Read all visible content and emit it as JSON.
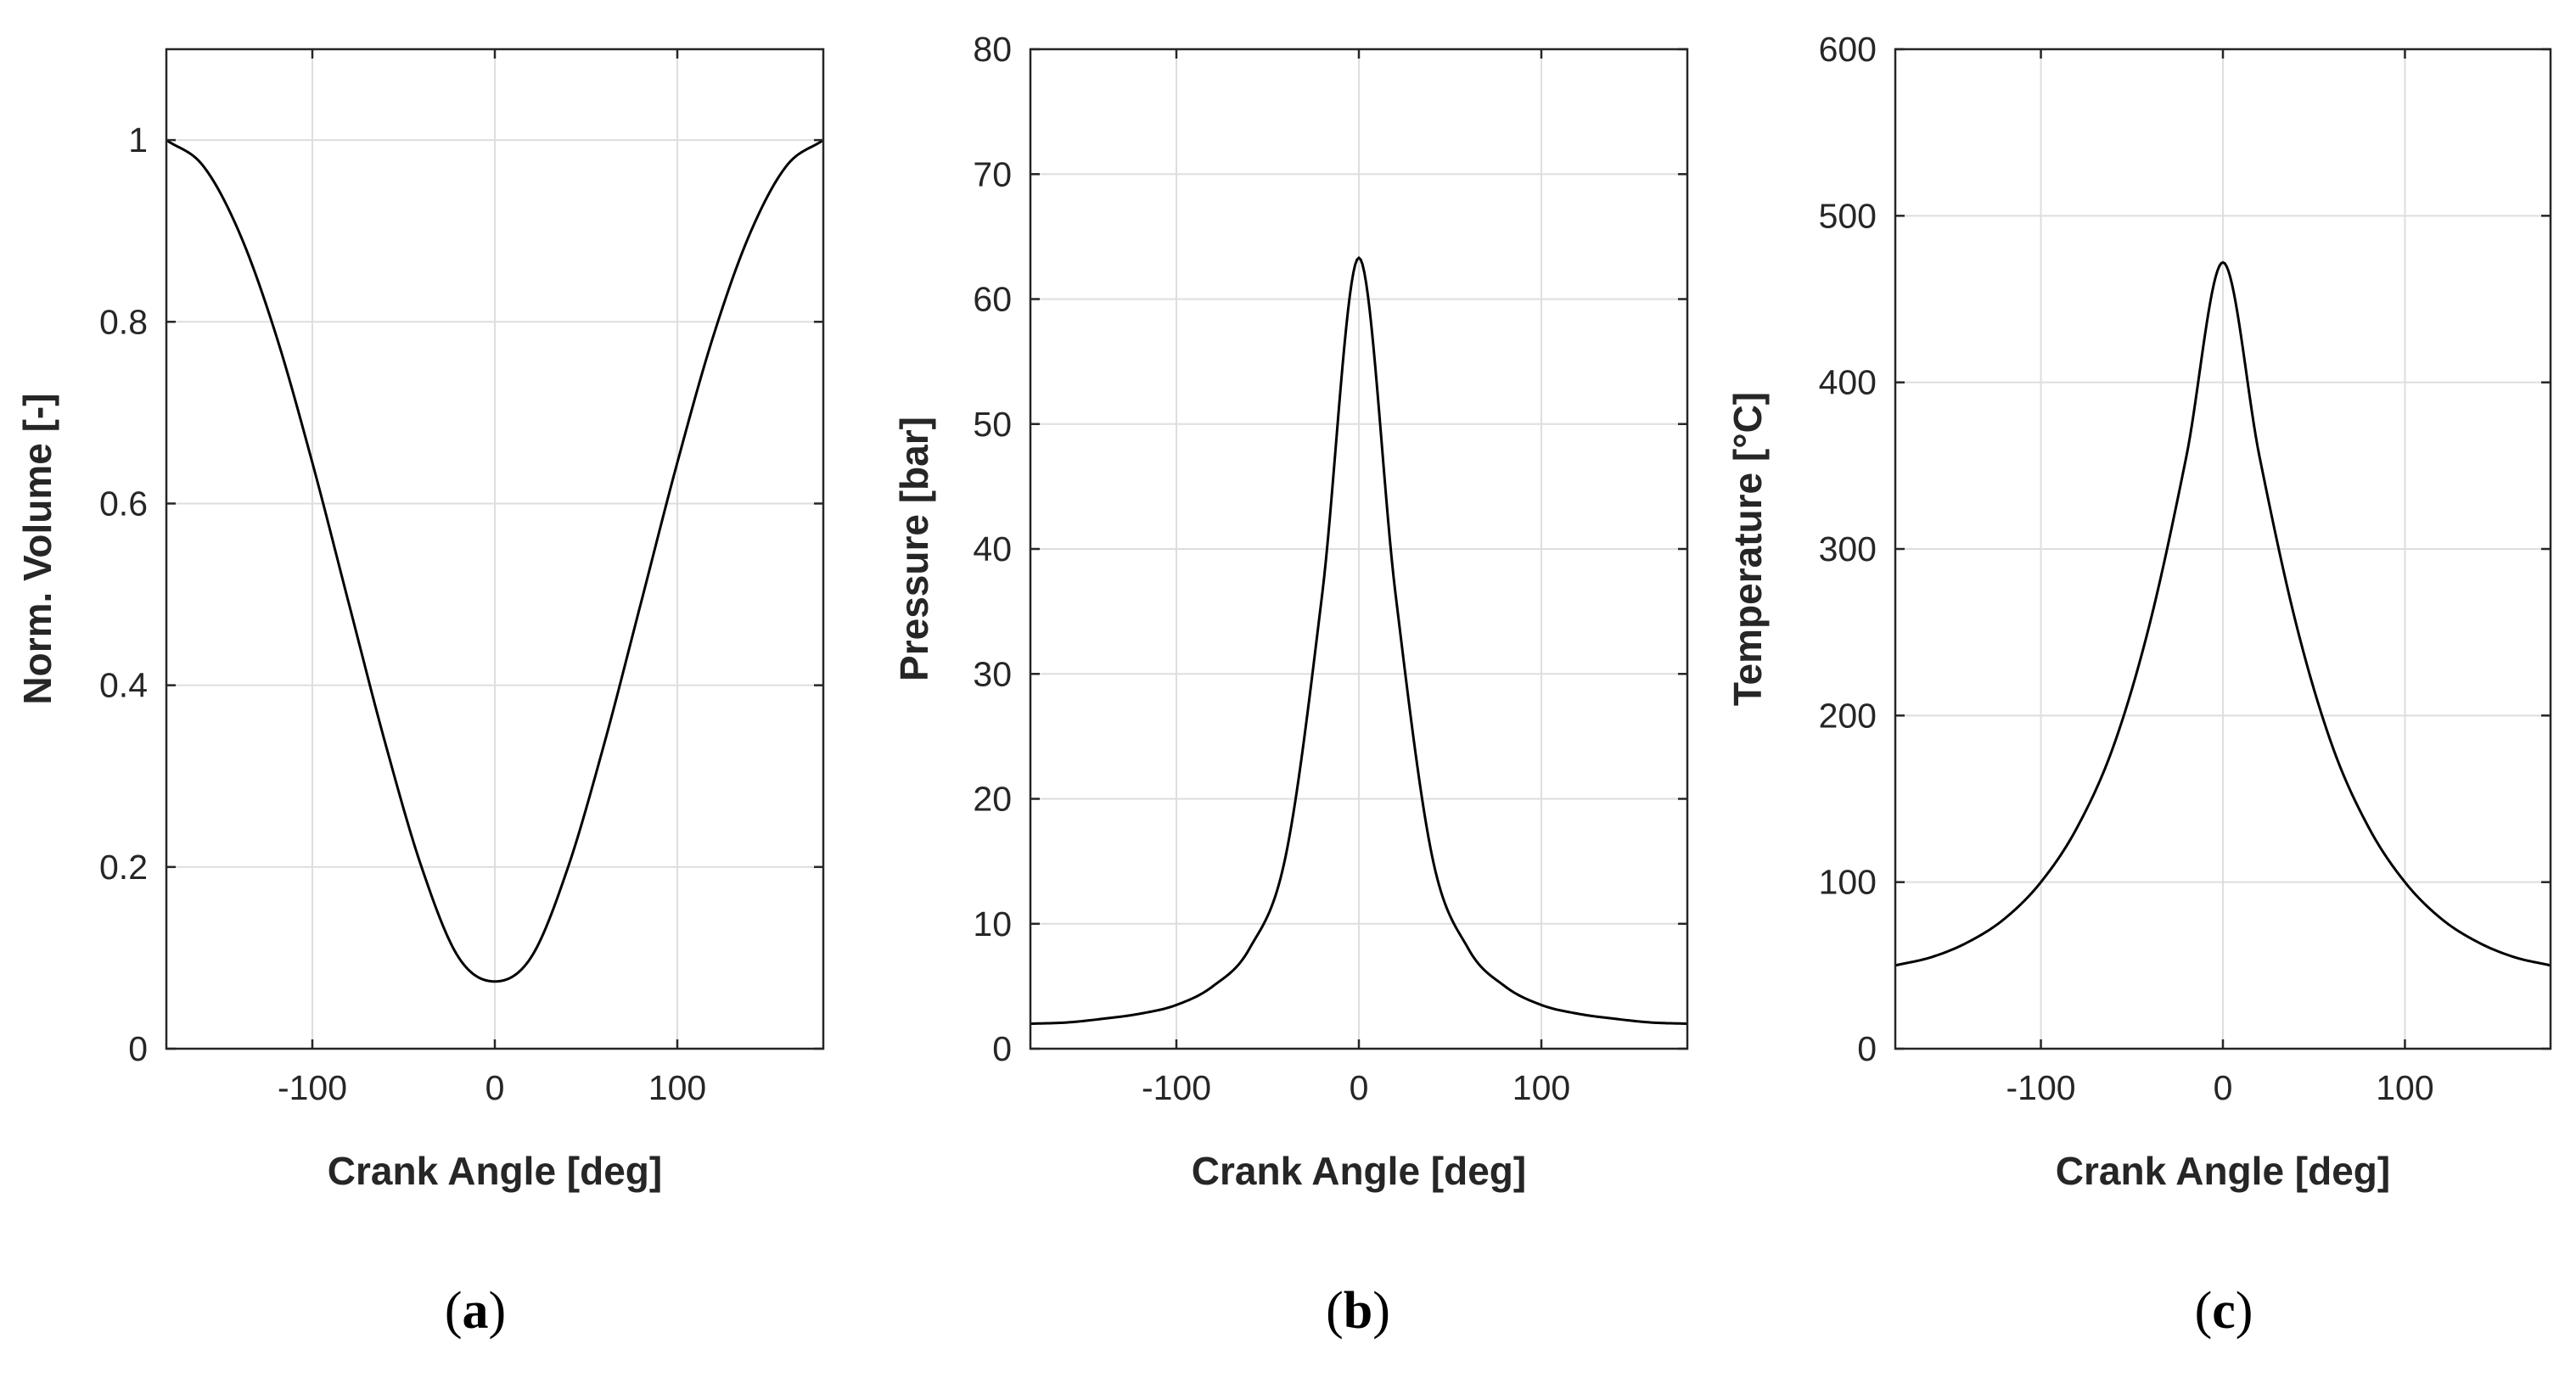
{
  "chart_data": [
    {
      "type": "line",
      "panel_label": "a",
      "xlabel": "Crank Angle [deg]",
      "ylabel": "Norm. Volume [-]",
      "xlim": [
        -180,
        180
      ],
      "ylim": [
        0,
        1.1
      ],
      "xticks": [
        -100,
        0,
        100
      ],
      "yticks": [
        0,
        0.2,
        0.4,
        0.6,
        0.8,
        1
      ],
      "ytick_labels": [
        "0",
        "0.2",
        "0.4",
        "0.6",
        "0.8",
        "1"
      ],
      "grid": true,
      "line_color": "#000000",
      "series": [
        {
          "x": [
            -180,
            -160,
            -140,
            -120,
            -100,
            -80,
            -60,
            -40,
            -20,
            0,
            20,
            40,
            60,
            80,
            100,
            120,
            140,
            160,
            180
          ],
          "values": [
            1.0,
            0.972,
            0.898,
            0.786,
            0.645,
            0.49,
            0.336,
            0.199,
            0.101,
            0.074,
            0.101,
            0.199,
            0.336,
            0.49,
            0.645,
            0.786,
            0.898,
            0.972,
            1.0
          ]
        }
      ]
    },
    {
      "type": "line",
      "panel_label": "b",
      "xlabel": "Crank Angle [deg]",
      "ylabel": "Pressure [bar]",
      "xlim": [
        -180,
        180
      ],
      "ylim": [
        0,
        80
      ],
      "xticks": [
        -100,
        0,
        100
      ],
      "yticks": [
        0,
        10,
        20,
        30,
        40,
        50,
        60,
        70,
        80
      ],
      "ytick_labels": [
        "0",
        "10",
        "20",
        "30",
        "40",
        "50",
        "60",
        "70",
        "80"
      ],
      "grid": true,
      "line_color": "#000000",
      "series": [
        {
          "x": [
            -180,
            -160,
            -140,
            -120,
            -100,
            -80,
            -60,
            -40,
            -20,
            0,
            20,
            40,
            60,
            80,
            100,
            120,
            140,
            160,
            180
          ],
          "values": [
            2.0,
            2.1,
            2.4,
            2.8,
            3.5,
            5.0,
            8.0,
            15.5,
            36.5,
            63.3,
            36.5,
            15.5,
            8.0,
            5.0,
            3.5,
            2.8,
            2.4,
            2.1,
            2.0
          ]
        }
      ]
    },
    {
      "type": "line",
      "panel_label": "c",
      "xlabel": "Crank Angle [deg]",
      "ylabel": "Temperature [°C]",
      "xlim": [
        -180,
        180
      ],
      "ylim": [
        0,
        600
      ],
      "xticks": [
        -100,
        0,
        100
      ],
      "yticks": [
        0,
        100,
        200,
        300,
        400,
        500,
        600
      ],
      "ytick_labels": [
        "0",
        "100",
        "200",
        "300",
        "400",
        "500",
        "600"
      ],
      "grid": true,
      "line_color": "#000000",
      "series": [
        {
          "x": [
            -180,
            -160,
            -140,
            -120,
            -100,
            -80,
            -60,
            -40,
            -20,
            0,
            20,
            40,
            60,
            80,
            100,
            120,
            140,
            160,
            180
          ],
          "values": [
            50,
            55,
            64,
            78,
            100,
            133,
            182,
            256,
            356,
            472,
            356,
            256,
            182,
            133,
            100,
            78,
            64,
            55,
            50
          ]
        }
      ]
    }
  ]
}
